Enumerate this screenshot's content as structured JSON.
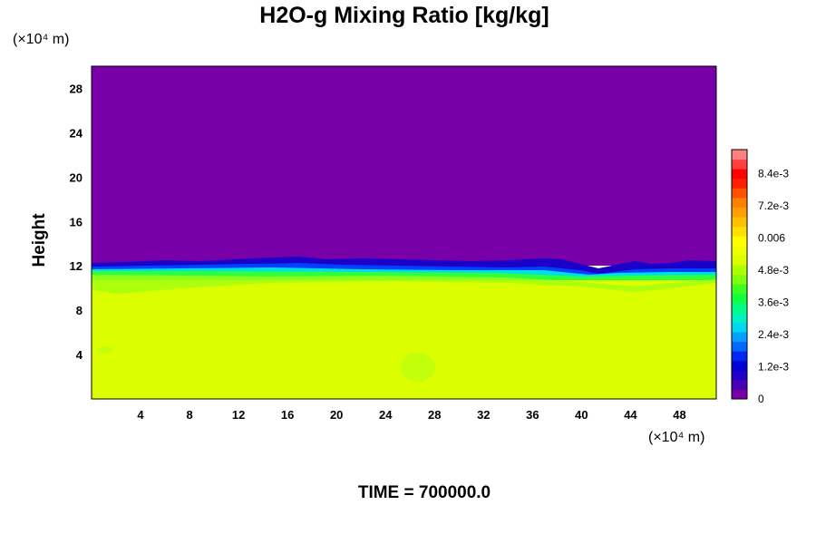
{
  "chart_data": {
    "type": "heatmap",
    "title": "H2O-g Mixing Ratio [kg/kg]",
    "ylabel": "Height",
    "xlabel": "",
    "x_unit": "(×10⁴ m)",
    "y_unit": "(×10⁴ m)",
    "xlim": [
      0,
      51
    ],
    "ylim": [
      0,
      30
    ],
    "x_ticks": [
      "4",
      "8",
      "12",
      "16",
      "20",
      "24",
      "28",
      "32",
      "36",
      "40",
      "44",
      "48"
    ],
    "y_ticks": [
      "4",
      "8",
      "12",
      "16",
      "20",
      "24",
      "28"
    ],
    "regions": [
      {
        "quantity": "moist layer",
        "from_height": 0,
        "to_height": 10.5,
        "value": 0.0063,
        "color": "#dcff00"
      },
      {
        "quantity": "transition band",
        "from_height": 10.5,
        "to_height": 12.5,
        "value_range": [
          0.0002,
          0.0055
        ]
      },
      {
        "quantity": "dry upper layer",
        "from_height": 12.5,
        "to_height": 30,
        "value": 0.0,
        "color": "#7800a8"
      }
    ],
    "colorbar": {
      "min": 0,
      "max": 0.0093,
      "tick_labels": [
        "8.4e-3",
        "7.2e-3",
        "0.006",
        "4.8e-3",
        "3.6e-3",
        "2.4e-3",
        "1.2e-3",
        "0"
      ],
      "colors": [
        "#7800a8",
        "#4800b8",
        "#2000c8",
        "#0000d8",
        "#0028f0",
        "#0068ff",
        "#00a0ff",
        "#00d8f0",
        "#00f0c0",
        "#00ff80",
        "#10ff40",
        "#40ff20",
        "#80ff10",
        "#b0ff00",
        "#dcff00",
        "#f0ff00",
        "#ffff00",
        "#ffe000",
        "#ffc000",
        "#ffa000",
        "#ff8000",
        "#ff5000",
        "#ff2000",
        "#ff0000",
        "#ff4040",
        "#ff8080"
      ]
    },
    "time_label": "TIME = 700000.0"
  }
}
